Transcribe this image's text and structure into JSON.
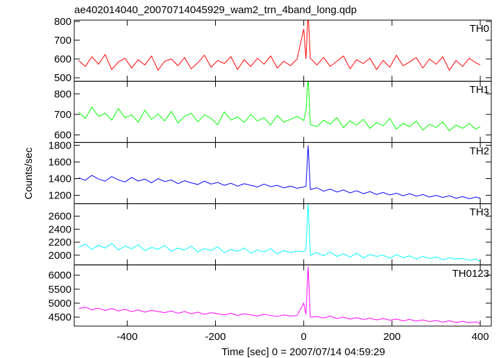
{
  "chart_data": {
    "type": "line",
    "title": "ae402014040_20070714045929_wam2_trn_4band_long.qdp",
    "xlabel": "Time [sec] 0 = 2007/07/14 04:59:29",
    "ylabel": "Counts/sec",
    "xlim": [
      -520,
      425
    ],
    "xticks": [
      -400,
      -200,
      0,
      200,
      400
    ],
    "x": [
      -510,
      -495,
      -480,
      -465,
      -450,
      -435,
      -420,
      -405,
      -390,
      -375,
      -360,
      -345,
      -330,
      -315,
      -300,
      -285,
      -270,
      -255,
      -240,
      -225,
      -210,
      -195,
      -180,
      -165,
      -150,
      -135,
      -120,
      -105,
      -90,
      -75,
      -60,
      -45,
      -30,
      -15,
      0,
      5,
      10,
      15,
      30,
      45,
      60,
      75,
      90,
      105,
      120,
      135,
      150,
      165,
      180,
      195,
      210,
      225,
      240,
      255,
      270,
      285,
      300,
      315,
      330,
      345,
      360,
      375,
      390,
      400
    ],
    "series": [
      {
        "name": "TH0",
        "color": "#ff0000",
        "ylim": [
          481,
          807
        ],
        "yticks": [
          500,
          600,
          700,
          800
        ],
        "values": [
          592,
          560,
          612,
          572,
          624,
          544,
          584,
          604,
          552,
          596,
          568,
          616,
          540,
          588,
          600,
          564,
          608,
          548,
          580,
          620,
          556,
          592,
          576,
          612,
          544,
          596,
          560,
          604,
          572,
          616,
          552,
          588,
          564,
          600,
          760,
          600,
          850,
          604,
          568,
          608,
          560,
          588,
          616,
          548,
          596,
          576,
          604,
          544,
          592,
          556,
          620,
          564,
          584,
          608,
          552,
          600,
          572,
          612,
          540,
          592,
          560,
          604,
          580,
          568
        ]
      },
      {
        "name": "TH1",
        "color": "#00ff00",
        "ylim": [
          563,
          861
        ],
        "yticks": [
          600,
          700,
          800
        ],
        "values": [
          712,
          680,
          735,
          690,
          705,
          672,
          728,
          684,
          698,
          662,
          720,
          676,
          702,
          668,
          715,
          658,
          690,
          706,
          664,
          698,
          680,
          650,
          712,
          672,
          688,
          660,
          700,
          668,
          684,
          648,
          695,
          662,
          676,
          690,
          670,
          720,
          880,
          650,
          640,
          672,
          652,
          684,
          636,
          668,
          648,
          676,
          632,
          660,
          644,
          680,
          628,
          656,
          640,
          668,
          624,
          652,
          636,
          664,
          620,
          648,
          632,
          656,
          628,
          640
        ]
      },
      {
        "name": "TH2",
        "color": "#0000ff",
        "ylim": [
          1100,
          1833
        ],
        "yticks": [
          1200,
          1400,
          1600,
          1800
        ],
        "values": [
          1410,
          1380,
          1440,
          1395,
          1370,
          1425,
          1385,
          1360,
          1415,
          1370,
          1395,
          1350,
          1400,
          1365,
          1385,
          1340,
          1375,
          1350,
          1330,
          1370,
          1335,
          1355,
          1320,
          1345,
          1310,
          1340,
          1320,
          1300,
          1335,
          1305,
          1320,
          1290,
          1310,
          1285,
          1300,
          1310,
          1800,
          1270,
          1290,
          1250,
          1275,
          1240,
          1265,
          1230,
          1255,
          1220,
          1245,
          1210,
          1235,
          1205,
          1225,
          1195,
          1220,
          1190,
          1210,
          1180,
          1200,
          1175,
          1195,
          1165,
          1185,
          1160,
          1180,
          1165
        ]
      },
      {
        "name": "TH3",
        "color": "#00ffff",
        "ylim": [
          1850,
          2793
        ],
        "yticks": [
          2000,
          2200,
          2400,
          2600
        ],
        "values": [
          2120,
          2170,
          2090,
          2150,
          2110,
          2180,
          2080,
          2140,
          2100,
          2160,
          2070,
          2120,
          2090,
          2150,
          2060,
          2110,
          2080,
          2140,
          2050,
          2100,
          2070,
          2130,
          2040,
          2090,
          2060,
          2110,
          2030,
          2080,
          2050,
          2100,
          2020,
          2070,
          2040,
          2060,
          2050,
          2100,
          2800,
          2000,
          2040,
          1990,
          2050,
          1980,
          2020,
          1970,
          2030,
          1960,
          2010,
          1980,
          2000,
          1950,
          2010,
          1960,
          1990,
          1940,
          1980,
          1950,
          1970,
          1930,
          1960,
          1940,
          1950,
          1920,
          1940,
          1910
        ]
      },
      {
        "name": "TH0123",
        "color": "#ff00ff",
        "ylim": [
          4180,
          6369
        ],
        "yticks": [
          4500,
          5000,
          5500,
          6000
        ],
        "values": [
          4800,
          4860,
          4760,
          4820,
          4740,
          4810,
          4720,
          4780,
          4700,
          4760,
          4680,
          4740,
          4700,
          4660,
          4720,
          4640,
          4700,
          4620,
          4680,
          4600,
          4660,
          4620,
          4580,
          4640,
          4560,
          4620,
          4580,
          4540,
          4600,
          4560,
          4520,
          4580,
          4540,
          4560,
          5000,
          4600,
          6300,
          4500,
          4520,
          4470,
          4540,
          4450,
          4500,
          4430,
          4480,
          4420,
          4460,
          4400,
          4450,
          4390,
          4430,
          4370,
          4420,
          4360,
          4400,
          4340,
          4380,
          4320,
          4370,
          4310,
          4350,
          4300,
          4330,
          4270
        ]
      }
    ]
  }
}
